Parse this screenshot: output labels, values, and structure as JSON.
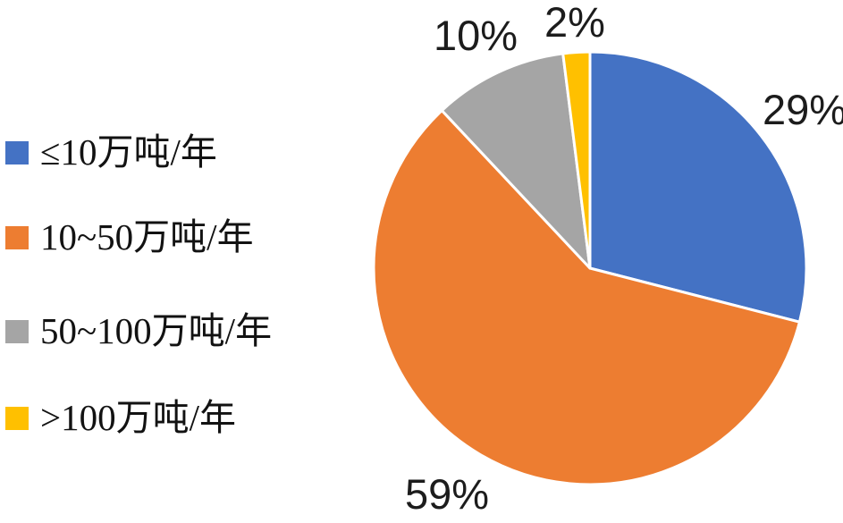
{
  "chart_data": {
    "type": "pie",
    "title": "",
    "legend_position": "left",
    "direction": "clockwise",
    "start_angle_deg": 0,
    "categories": [
      "≤10万吨/年",
      "10~50万吨/年",
      "50~100万吨/年",
      ">100万吨/年"
    ],
    "values": [
      29,
      59,
      10,
      2
    ],
    "slices": [
      {
        "label": "≤10万吨/年",
        "value": 29,
        "pct_label": "29%",
        "color": "#4472C4"
      },
      {
        "label": "10~50万吨/年",
        "value": 59,
        "pct_label": "59%",
        "color": "#ED7D31"
      },
      {
        "label": "50~100万吨/年",
        "value": 10,
        "pct_label": "10%",
        "color": "#A5A5A5"
      },
      {
        "label": ">100万吨/年",
        "value": 2,
        "pct_label": "2%",
        "color": "#FFC000"
      }
    ],
    "slice_border_color": "#ffffff",
    "label_color": "#1c1c1c"
  }
}
